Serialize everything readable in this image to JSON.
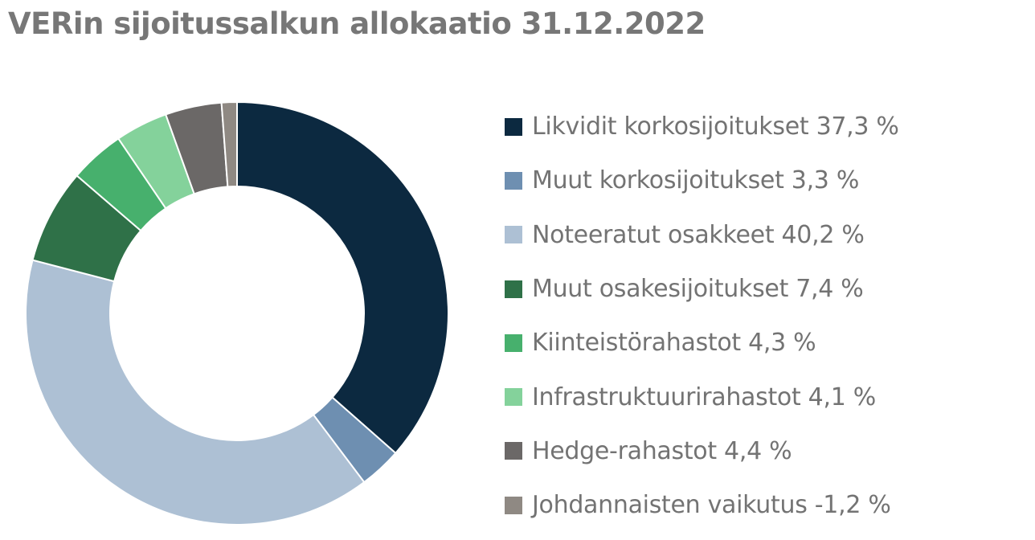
{
  "title": "VERin sijoitussalkun allokaatio 31.12.2022",
  "chart_data": {
    "type": "pie",
    "style": "donut",
    "title": "VERin sijoitussalkun allokaatio 31.12.2022",
    "legend_position": "right",
    "series": [
      {
        "label": "Likvidit korkosijoitukset 37,3 %",
        "value": 37.3,
        "color": "#0c2940"
      },
      {
        "label": "Muut korkosijoitukset 3,3 %",
        "value": 3.3,
        "color": "#6e8fb1"
      },
      {
        "label": "Noteeratut osakkeet 40,2 %",
        "value": 40.2,
        "color": "#adc0d4"
      },
      {
        "label": "Muut osakesijoitukset 7,4 %",
        "value": 7.4,
        "color": "#2f7148"
      },
      {
        "label": "Kiinteistörahastot 4,3 %",
        "value": 4.3,
        "color": "#47b06d"
      },
      {
        "label": "Infrastruktuurirahastot 4,1 %",
        "value": 4.1,
        "color": "#84d29b"
      },
      {
        "label": "Hedge-rahastot 4,4 %",
        "value": 4.4,
        "color": "#6b6867"
      },
      {
        "label": "Johdannaisten vaikutus -1,2 %",
        "value": -1.2,
        "color": "#8f8983"
      }
    ]
  }
}
